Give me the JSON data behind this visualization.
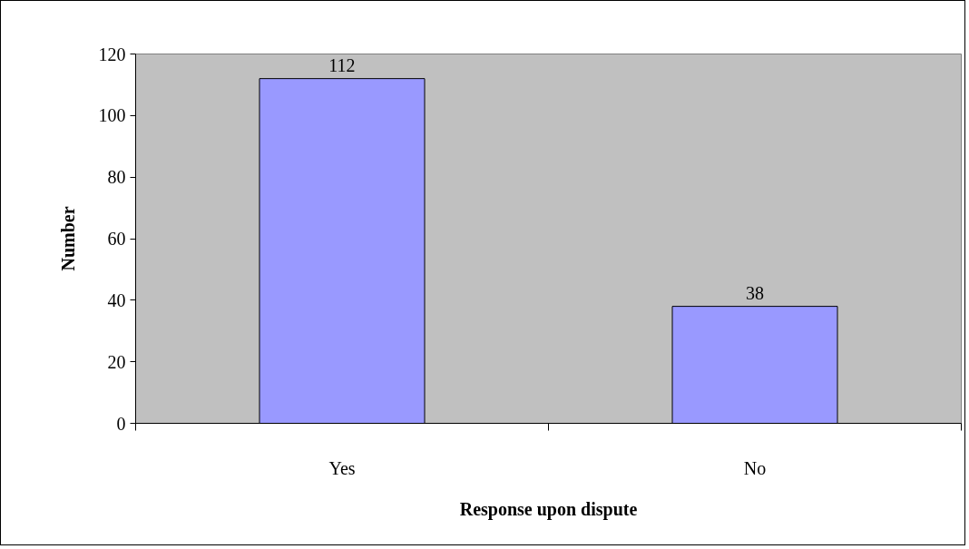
{
  "chart_data": {
    "type": "bar",
    "xlabel": "Response upon dispute",
    "ylabel": "Number",
    "categories": [
      "Yes",
      "No"
    ],
    "values": [
      112,
      38
    ],
    "color": "#9999ff",
    "ylim": [
      0,
      120
    ],
    "yticks": [
      0,
      20,
      40,
      60,
      80,
      100,
      120
    ],
    "grid": false,
    "data_labels": true
  }
}
